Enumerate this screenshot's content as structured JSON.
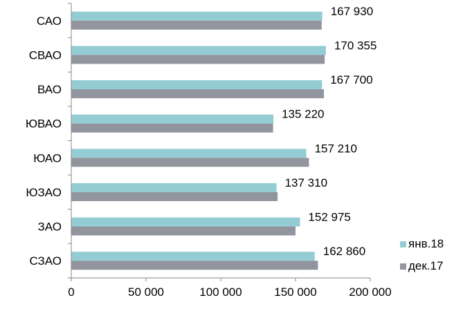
{
  "chart_data": {
    "type": "bar",
    "orientation": "horizontal",
    "categories": [
      "САО",
      "СВАО",
      "ВАО",
      "ЮВАО",
      "ЮАО",
      "ЮЗАО",
      "ЗАО",
      "СЗАО"
    ],
    "series": [
      {
        "name": "янв.18",
        "color": "#93cdd3",
        "values": [
          167930,
          170355,
          167700,
          135220,
          157210,
          137310,
          152975,
          162860
        ]
      },
      {
        "name": "дек.17",
        "color": "#92959d",
        "values": [
          167500,
          169500,
          169000,
          135000,
          159000,
          138000,
          150000,
          165000
        ]
      }
    ],
    "data_labels": [
      "167 930",
      "170 355",
      "167 700",
      "135 220",
      "157 210",
      "137 310",
      "152 975",
      "162 860"
    ],
    "x_ticks": [
      0,
      50000,
      100000,
      150000,
      200000
    ],
    "x_tick_labels": [
      "0",
      "50 000",
      "100 000",
      "150 000",
      "200 000"
    ],
    "xlim": [
      0,
      200000
    ],
    "grid": false,
    "legend_position": "bottom-right"
  }
}
